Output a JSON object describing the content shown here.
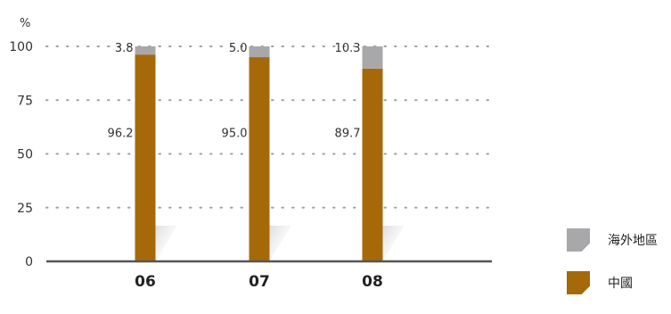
{
  "chart_data": {
    "type": "bar",
    "stacked": true,
    "unit_label": "%",
    "categories": [
      "06",
      "07",
      "08"
    ],
    "series": [
      {
        "name": "中國",
        "values": [
          96.2,
          95.0,
          89.7
        ],
        "color": "#a6690a"
      },
      {
        "name": "海外地區",
        "values": [
          3.8,
          5.0,
          10.3
        ],
        "color": "#a8a8aa"
      }
    ],
    "value_labels": [
      [
        "96.2",
        "95.0",
        "89.7"
      ],
      [
        "3.8",
        "5.0",
        "10.3"
      ]
    ],
    "yticks": [
      0,
      25,
      50,
      75,
      100
    ],
    "ylim": [
      0,
      100
    ],
    "grid": "dotted",
    "legend_position": "bottom-right"
  },
  "legend": {
    "items": [
      {
        "label": "海外地區",
        "color": "#a8a8aa"
      },
      {
        "label": "中國",
        "color": "#a6690a"
      }
    ]
  }
}
